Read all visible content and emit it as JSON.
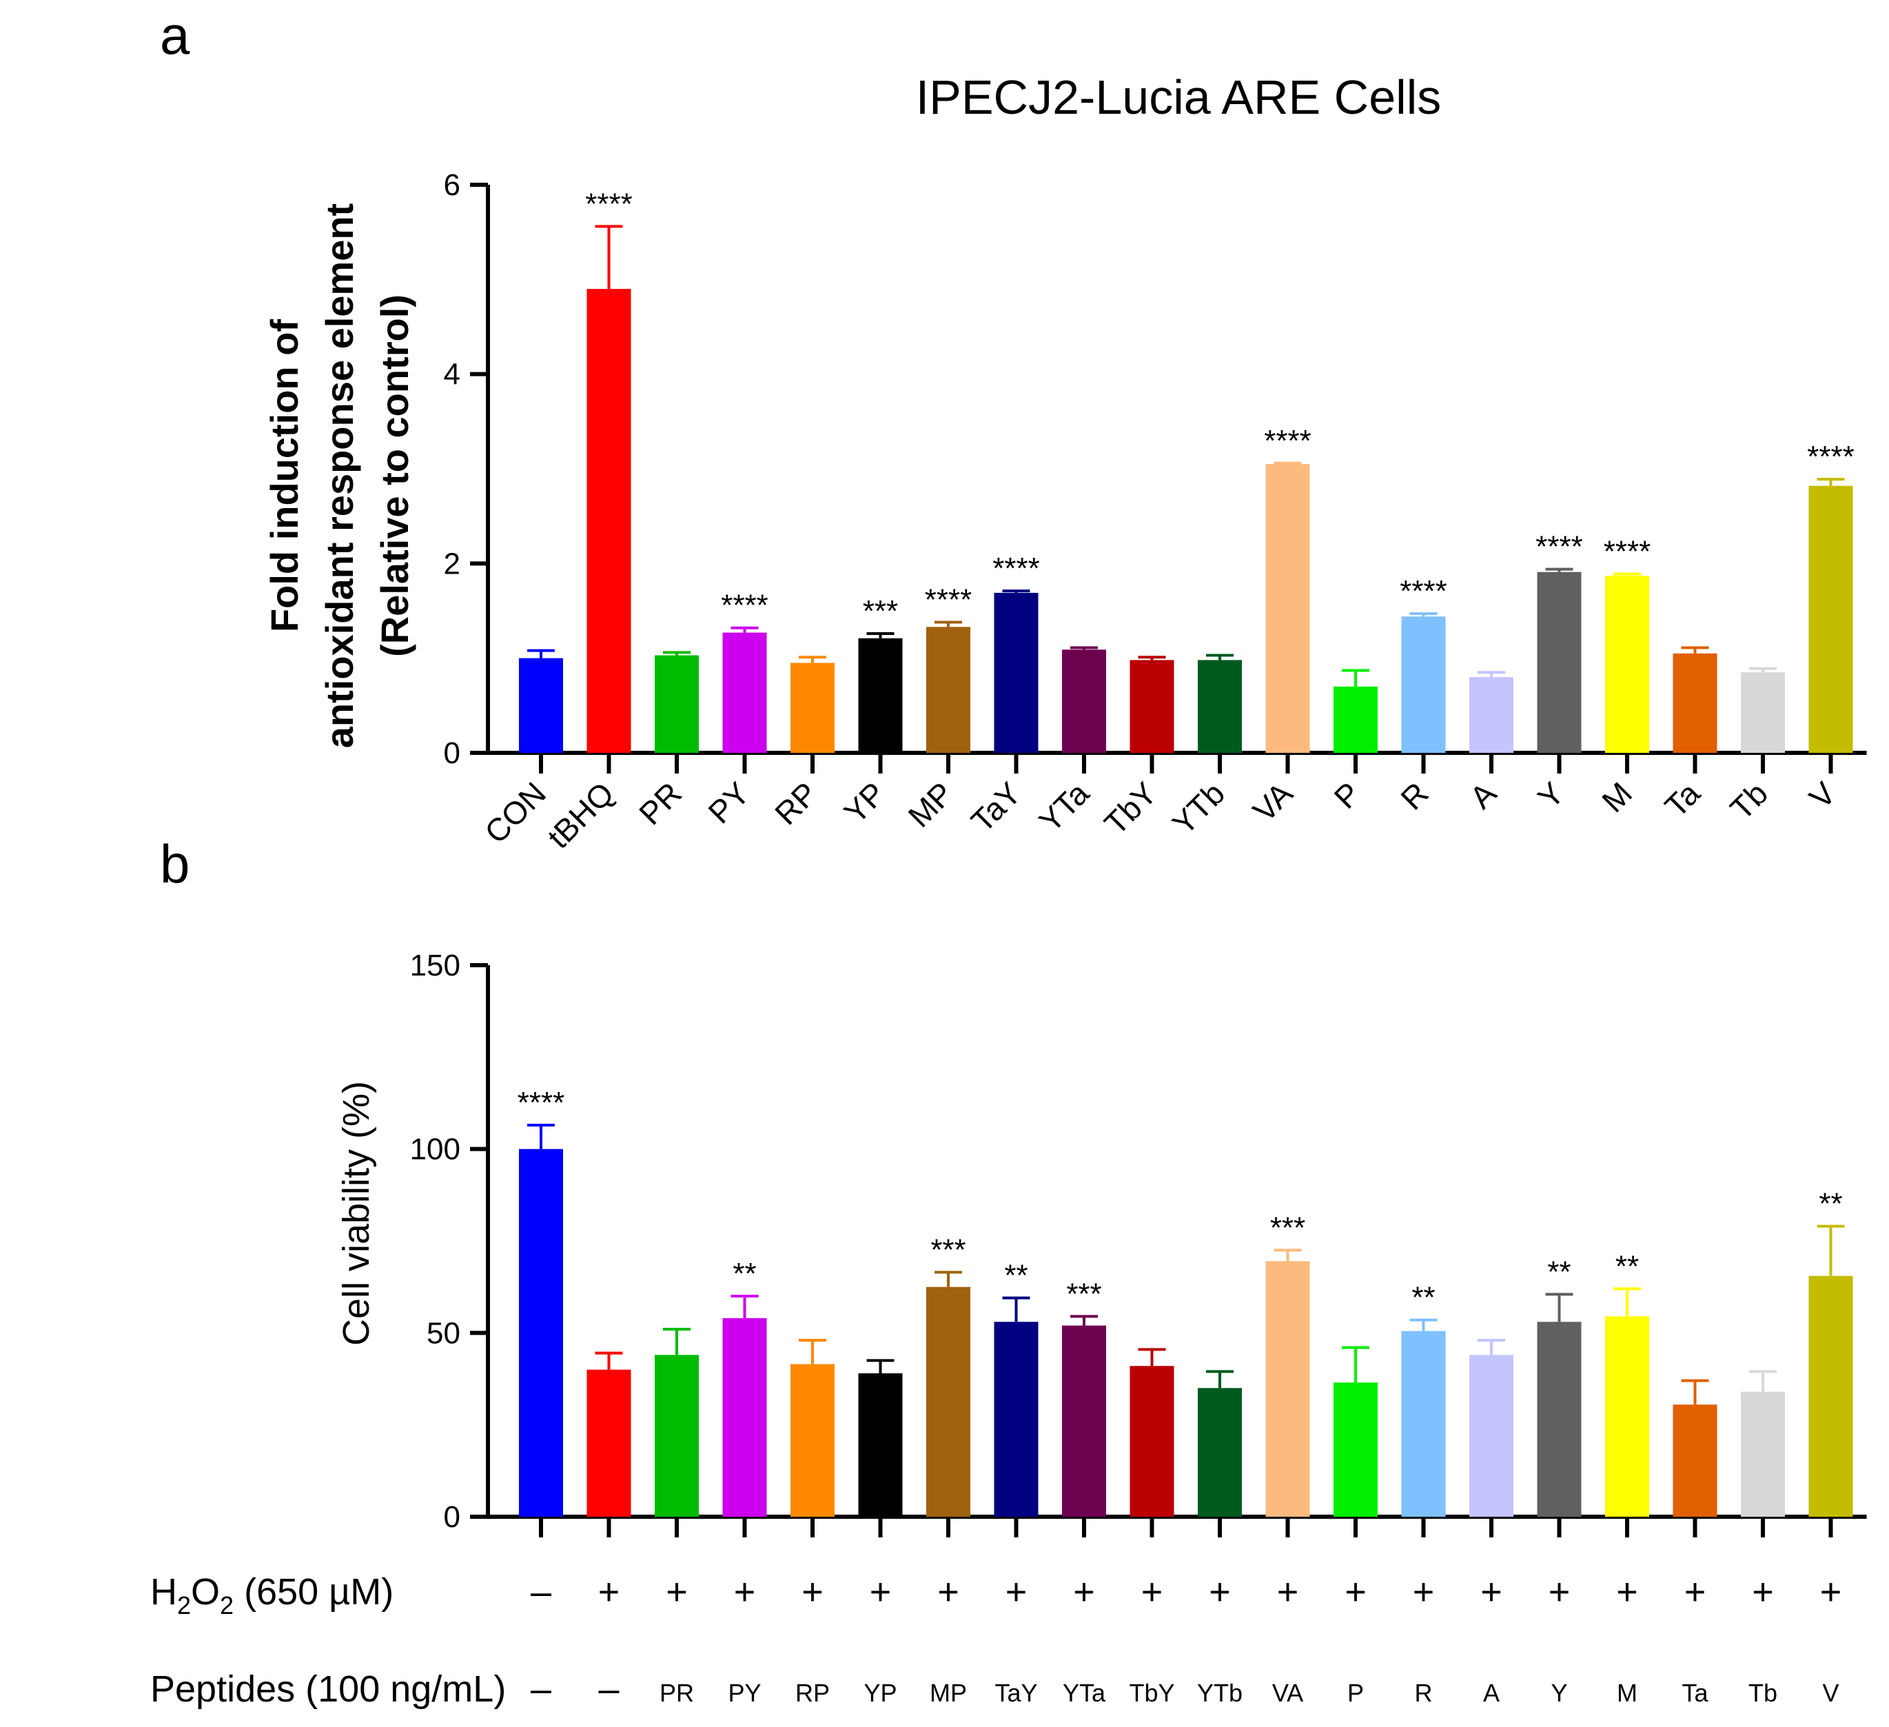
{
  "panel_a_label": "a",
  "panel_b_label": "b",
  "colors": [
    "#0000ff",
    "#ff0000",
    "#00bb00",
    "#cc00ee",
    "#ff8800",
    "#000000",
    "#a0620f",
    "#000080",
    "#6e0050",
    "#bb0000",
    "#005a1e",
    "#fcba7e",
    "#00ee00",
    "#7fc0ff",
    "#c4c4ff",
    "#606060",
    "#ffff00",
    "#e06000",
    "#d8d8d8",
    "#c4bc00"
  ],
  "chart_data": [
    {
      "type": "bar",
      "title": "IPECJ2-Lucia ARE Cells",
      "ylabel_lines": [
        "Fold induction of",
        "antioxidant response element",
        "(Relative to control)"
      ],
      "xlabel": "",
      "ylim": [
        0,
        6
      ],
      "yticks": [
        "0",
        "2",
        "4",
        "6"
      ],
      "categories": [
        "CON",
        "tBHQ",
        "PR",
        "PY",
        "RP",
        "YP",
        "MP",
        "TaY",
        "YTa",
        "TbY",
        "YTb",
        "VA",
        "P",
        "R",
        "A",
        "Y",
        "M",
        "Ta",
        "Tb",
        "V"
      ],
      "values": [
        1.0,
        4.9,
        1.03,
        1.27,
        0.95,
        1.21,
        1.33,
        1.69,
        1.09,
        0.98,
        0.98,
        3.05,
        0.7,
        1.44,
        0.8,
        1.91,
        1.87,
        1.05,
        0.85,
        2.82
      ],
      "errors": [
        0.08,
        0.66,
        0.03,
        0.05,
        0.06,
        0.05,
        0.05,
        0.02,
        0.02,
        0.03,
        0.05,
        0.01,
        0.17,
        0.03,
        0.05,
        0.03,
        0.02,
        0.06,
        0.04,
        0.07
      ],
      "significance": [
        "",
        "****",
        "",
        "****",
        "",
        "***",
        "****",
        "****",
        "",
        "",
        "",
        "****",
        "",
        "****",
        "",
        "****",
        "****",
        "",
        "",
        "****"
      ]
    },
    {
      "type": "bar",
      "ylabel": "Cell viability (%)",
      "ylim": [
        0,
        150
      ],
      "yticks": [
        "0",
        "50",
        "100",
        "150"
      ],
      "values": [
        100,
        40,
        44,
        54,
        41.5,
        39,
        62.5,
        53,
        52,
        41,
        35,
        69.5,
        36.5,
        50.5,
        44,
        53,
        54.5,
        30.5,
        34,
        65.5
      ],
      "errors": [
        6.5,
        4.5,
        7,
        6,
        6.5,
        3.5,
        4,
        6.5,
        2.5,
        4.5,
        4.5,
        3,
        9.5,
        3,
        4,
        7.5,
        7.5,
        6.5,
        5.5,
        13.5
      ],
      "significance": [
        "****",
        "",
        "",
        "**",
        "",
        "",
        "***",
        "**",
        "***",
        "",
        "",
        "***",
        "",
        "**",
        "",
        "**",
        "**",
        "",
        "",
        "**"
      ],
      "h2o2_row": {
        "label_main": "H",
        "label_sub1": "2",
        "label_mid": "O",
        "label_sub2": "2",
        "label_tail": " (650 µM)",
        "symbols": [
          "–",
          "+",
          "+",
          "+",
          "+",
          "+",
          "+",
          "+",
          "+",
          "+",
          "+",
          "+",
          "+",
          "+",
          "+",
          "+",
          "+",
          "+",
          "+",
          "+"
        ]
      },
      "peptides_row": {
        "label": "Peptides (100 ng/mL)",
        "entries": [
          "–",
          "–",
          "PR",
          "PY",
          "RP",
          "YP",
          "MP",
          "TaY",
          "YTa",
          "TbY",
          "YTb",
          "VA",
          "P",
          "R",
          "A",
          "Y",
          "M",
          "Ta",
          "Tb",
          "V"
        ]
      }
    }
  ]
}
